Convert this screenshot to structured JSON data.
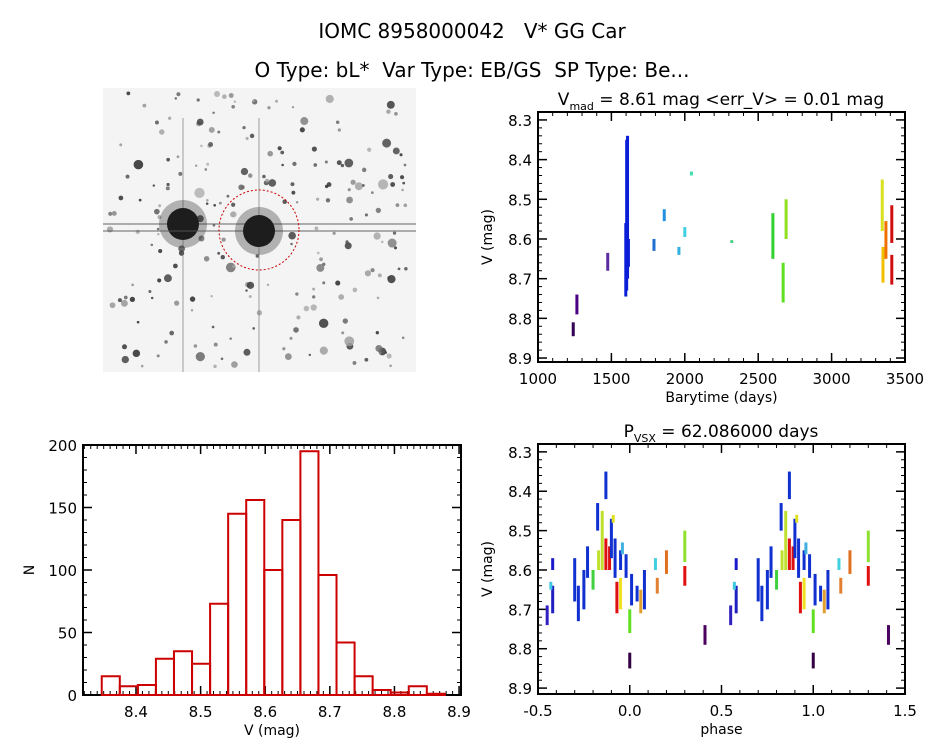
{
  "header": {
    "line1": "IOMC 8958000042   V* GG Car",
    "line2": "O Type: bL*  Var Type: EB/GS  SP Type: Be..."
  },
  "chart_data": [
    {
      "type": "image",
      "description_kind": "sky finder chart (inverted greyscale) with red circle around target"
    },
    {
      "type": "scatter",
      "title_main": "V",
      "title_sub": "mad",
      "title_rest": " = 8.61 mag <err_V> = 0.01 mag",
      "xlabel": "Barytime (days)",
      "ylabel": "V (mag)",
      "xlim": [
        1000,
        3500
      ],
      "ylim": [
        8.28,
        8.91
      ],
      "y_inverted": true,
      "xticks": [
        "1000",
        "1500",
        "2000",
        "2500",
        "3000",
        "3500"
      ],
      "yticks": [
        "8.3",
        "8.4",
        "8.5",
        "8.6",
        "8.7",
        "8.8",
        "8.9"
      ],
      "grid": false,
      "segments": [
        {
          "x": 1240,
          "v": [
            8.81,
            8.845
          ],
          "color": "#330055"
        },
        {
          "x": 1265,
          "v": [
            8.74,
            8.79
          ],
          "color": "#4b0082"
        },
        {
          "x": 1475,
          "v": [
            8.635,
            8.68
          ],
          "color": "#5a2ca0"
        },
        {
          "x": 1598,
          "v": [
            8.56,
            8.745
          ],
          "color": "#0a1ed8"
        },
        {
          "x": 1604,
          "v": [
            8.35,
            8.73
          ],
          "color": "#0a1ed8"
        },
        {
          "x": 1610,
          "v": [
            8.34,
            8.7
          ],
          "color": "#0a1ed8"
        },
        {
          "x": 1616,
          "v": [
            8.6,
            8.67
          ],
          "color": "#0a1ed8"
        },
        {
          "x": 1790,
          "v": [
            8.6,
            8.63
          ],
          "color": "#1f6fd0"
        },
        {
          "x": 1860,
          "v": [
            8.525,
            8.555
          ],
          "color": "#2090e0"
        },
        {
          "x": 1960,
          "v": [
            8.62,
            8.64
          ],
          "color": "#30b0e0"
        },
        {
          "x": 2000,
          "v": [
            8.57,
            8.595
          ],
          "color": "#40d0e0"
        },
        {
          "x": 2045,
          "v": [
            8.43,
            8.44
          ],
          "color": "#40e0b0"
        },
        {
          "x": 2320,
          "v": [
            8.603,
            8.61
          ],
          "color": "#40d080"
        },
        {
          "x": 2600,
          "v": [
            8.535,
            8.65
          ],
          "color": "#30d030"
        },
        {
          "x": 2670,
          "v": [
            8.66,
            8.76
          ],
          "color": "#60e020"
        },
        {
          "x": 2690,
          "v": [
            8.5,
            8.6
          ],
          "color": "#90e020"
        },
        {
          "x": 3345,
          "v": [
            8.45,
            8.58
          ],
          "color": "#d8e020"
        },
        {
          "x": 3350,
          "v": [
            8.62,
            8.71
          ],
          "color": "#f0c000"
        },
        {
          "x": 3370,
          "v": [
            8.555,
            8.65
          ],
          "color": "#f07000"
        },
        {
          "x": 3410,
          "v": [
            8.515,
            8.61
          ],
          "color": "#d01010"
        },
        {
          "x": 3410,
          "v": [
            8.64,
            8.715
          ],
          "color": "#d01010"
        }
      ]
    },
    {
      "type": "bar",
      "xlabel": "V (mag)",
      "ylabel": "N",
      "xlim": [
        8.318,
        8.903
      ],
      "ylim": [
        0,
        200
      ],
      "xticks": [
        "8.4",
        "8.5",
        "8.6",
        "8.7",
        "8.8",
        "8.9"
      ],
      "yticks": [
        "0",
        "50",
        "100",
        "150",
        "200"
      ],
      "bin_start": 8.347,
      "bin_width": 0.02795,
      "values": [
        15,
        7,
        8,
        29,
        35,
        25,
        73,
        145,
        156,
        100,
        140,
        195,
        96,
        42,
        15,
        4,
        2,
        7,
        1
      ],
      "color": "#cc0000"
    },
    {
      "type": "scatter",
      "title_main": "P",
      "title_sub": "VSX",
      "title_rest": " = 62.086000 days",
      "xlabel": "phase",
      "ylabel": "V (mag)",
      "xlim": [
        -0.5,
        1.5
      ],
      "ylim": [
        8.28,
        8.915
      ],
      "y_inverted": true,
      "xticks": [
        "-0.5",
        "0.0",
        "0.5",
        "1.0",
        "1.5"
      ],
      "yticks": [
        "8.3",
        "8.4",
        "8.5",
        "8.6",
        "8.7",
        "8.8",
        "8.9"
      ],
      "grid": false,
      "phase_repeat": 1,
      "segments": [
        {
          "x": -0.45,
          "v": [
            8.69,
            8.74
          ],
          "color": "#3020c0"
        },
        {
          "x": -0.42,
          "v": [
            8.64,
            8.71
          ],
          "color": "#2020c0"
        },
        {
          "x": -0.42,
          "v": [
            8.57,
            8.6
          ],
          "color": "#1a1acc"
        },
        {
          "x": -0.43,
          "v": [
            8.63,
            8.65
          ],
          "color": "#40c8e0"
        },
        {
          "x": -0.3,
          "v": [
            8.57,
            8.68
          ],
          "color": "#1030d0"
        },
        {
          "x": -0.28,
          "v": [
            8.64,
            8.73
          ],
          "color": "#1030d0"
        },
        {
          "x": -0.25,
          "v": [
            8.6,
            8.7
          ],
          "color": "#1030d0"
        },
        {
          "x": -0.23,
          "v": [
            8.54,
            8.62
          ],
          "color": "#1030d0"
        },
        {
          "x": -0.2,
          "v": [
            8.6,
            8.65
          ],
          "color": "#40d040"
        },
        {
          "x": -0.175,
          "v": [
            8.43,
            8.5
          ],
          "color": "#1030d0"
        },
        {
          "x": -0.17,
          "v": [
            8.55,
            8.6
          ],
          "color": "#c0e030"
        },
        {
          "x": -0.15,
          "v": [
            8.45,
            8.6
          ],
          "color": "#c0e030"
        },
        {
          "x": -0.13,
          "v": [
            8.35,
            8.42
          ],
          "color": "#1030d0"
        },
        {
          "x": -0.13,
          "v": [
            8.52,
            8.6
          ],
          "color": "#e01010"
        },
        {
          "x": -0.11,
          "v": [
            8.54,
            8.6
          ],
          "color": "#e01010"
        },
        {
          "x": -0.1,
          "v": [
            8.47,
            8.57
          ],
          "color": "#1030d0"
        },
        {
          "x": -0.09,
          "v": [
            8.46,
            8.48
          ],
          "color": "#e0e020"
        },
        {
          "x": -0.08,
          "v": [
            8.52,
            8.62
          ],
          "color": "#1030d0"
        },
        {
          "x": -0.07,
          "v": [
            8.63,
            8.71
          ],
          "color": "#e01010"
        },
        {
          "x": -0.05,
          "v": [
            8.62,
            8.7
          ],
          "color": "#f0e020"
        },
        {
          "x": -0.05,
          "v": [
            8.55,
            8.6
          ],
          "color": "#1030d0"
        },
        {
          "x": -0.04,
          "v": [
            8.53,
            8.56
          ],
          "color": "#40b0e0"
        },
        {
          "x": -0.02,
          "v": [
            8.56,
            8.62
          ],
          "color": "#1030d0"
        },
        {
          "x": 0.0,
          "v": [
            8.7,
            8.76
          ],
          "color": "#60e020"
        },
        {
          "x": 0.0,
          "v": [
            8.81,
            8.85
          ],
          "color": "#330044"
        },
        {
          "x": 0.01,
          "v": [
            8.61,
            8.69
          ],
          "color": "#1030d0"
        },
        {
          "x": 0.04,
          "v": [
            8.64,
            8.68
          ],
          "color": "#1030d0"
        },
        {
          "x": 0.06,
          "v": [
            8.65,
            8.71
          ],
          "color": "#e0a030"
        },
        {
          "x": 0.08,
          "v": [
            8.6,
            8.7
          ],
          "color": "#1030d0"
        },
        {
          "x": 0.14,
          "v": [
            8.57,
            8.6
          ],
          "color": "#40d0e0"
        },
        {
          "x": 0.15,
          "v": [
            8.62,
            8.66
          ],
          "color": "#e08030"
        },
        {
          "x": 0.2,
          "v": [
            8.55,
            8.61
          ],
          "color": "#e07020"
        },
        {
          "x": 0.3,
          "v": [
            8.5,
            8.58
          ],
          "color": "#90e030"
        },
        {
          "x": 0.3,
          "v": [
            8.59,
            8.64
          ],
          "color": "#e01010"
        },
        {
          "x": 0.41,
          "v": [
            8.74,
            8.79
          ],
          "color": "#4b0060"
        }
      ]
    }
  ]
}
